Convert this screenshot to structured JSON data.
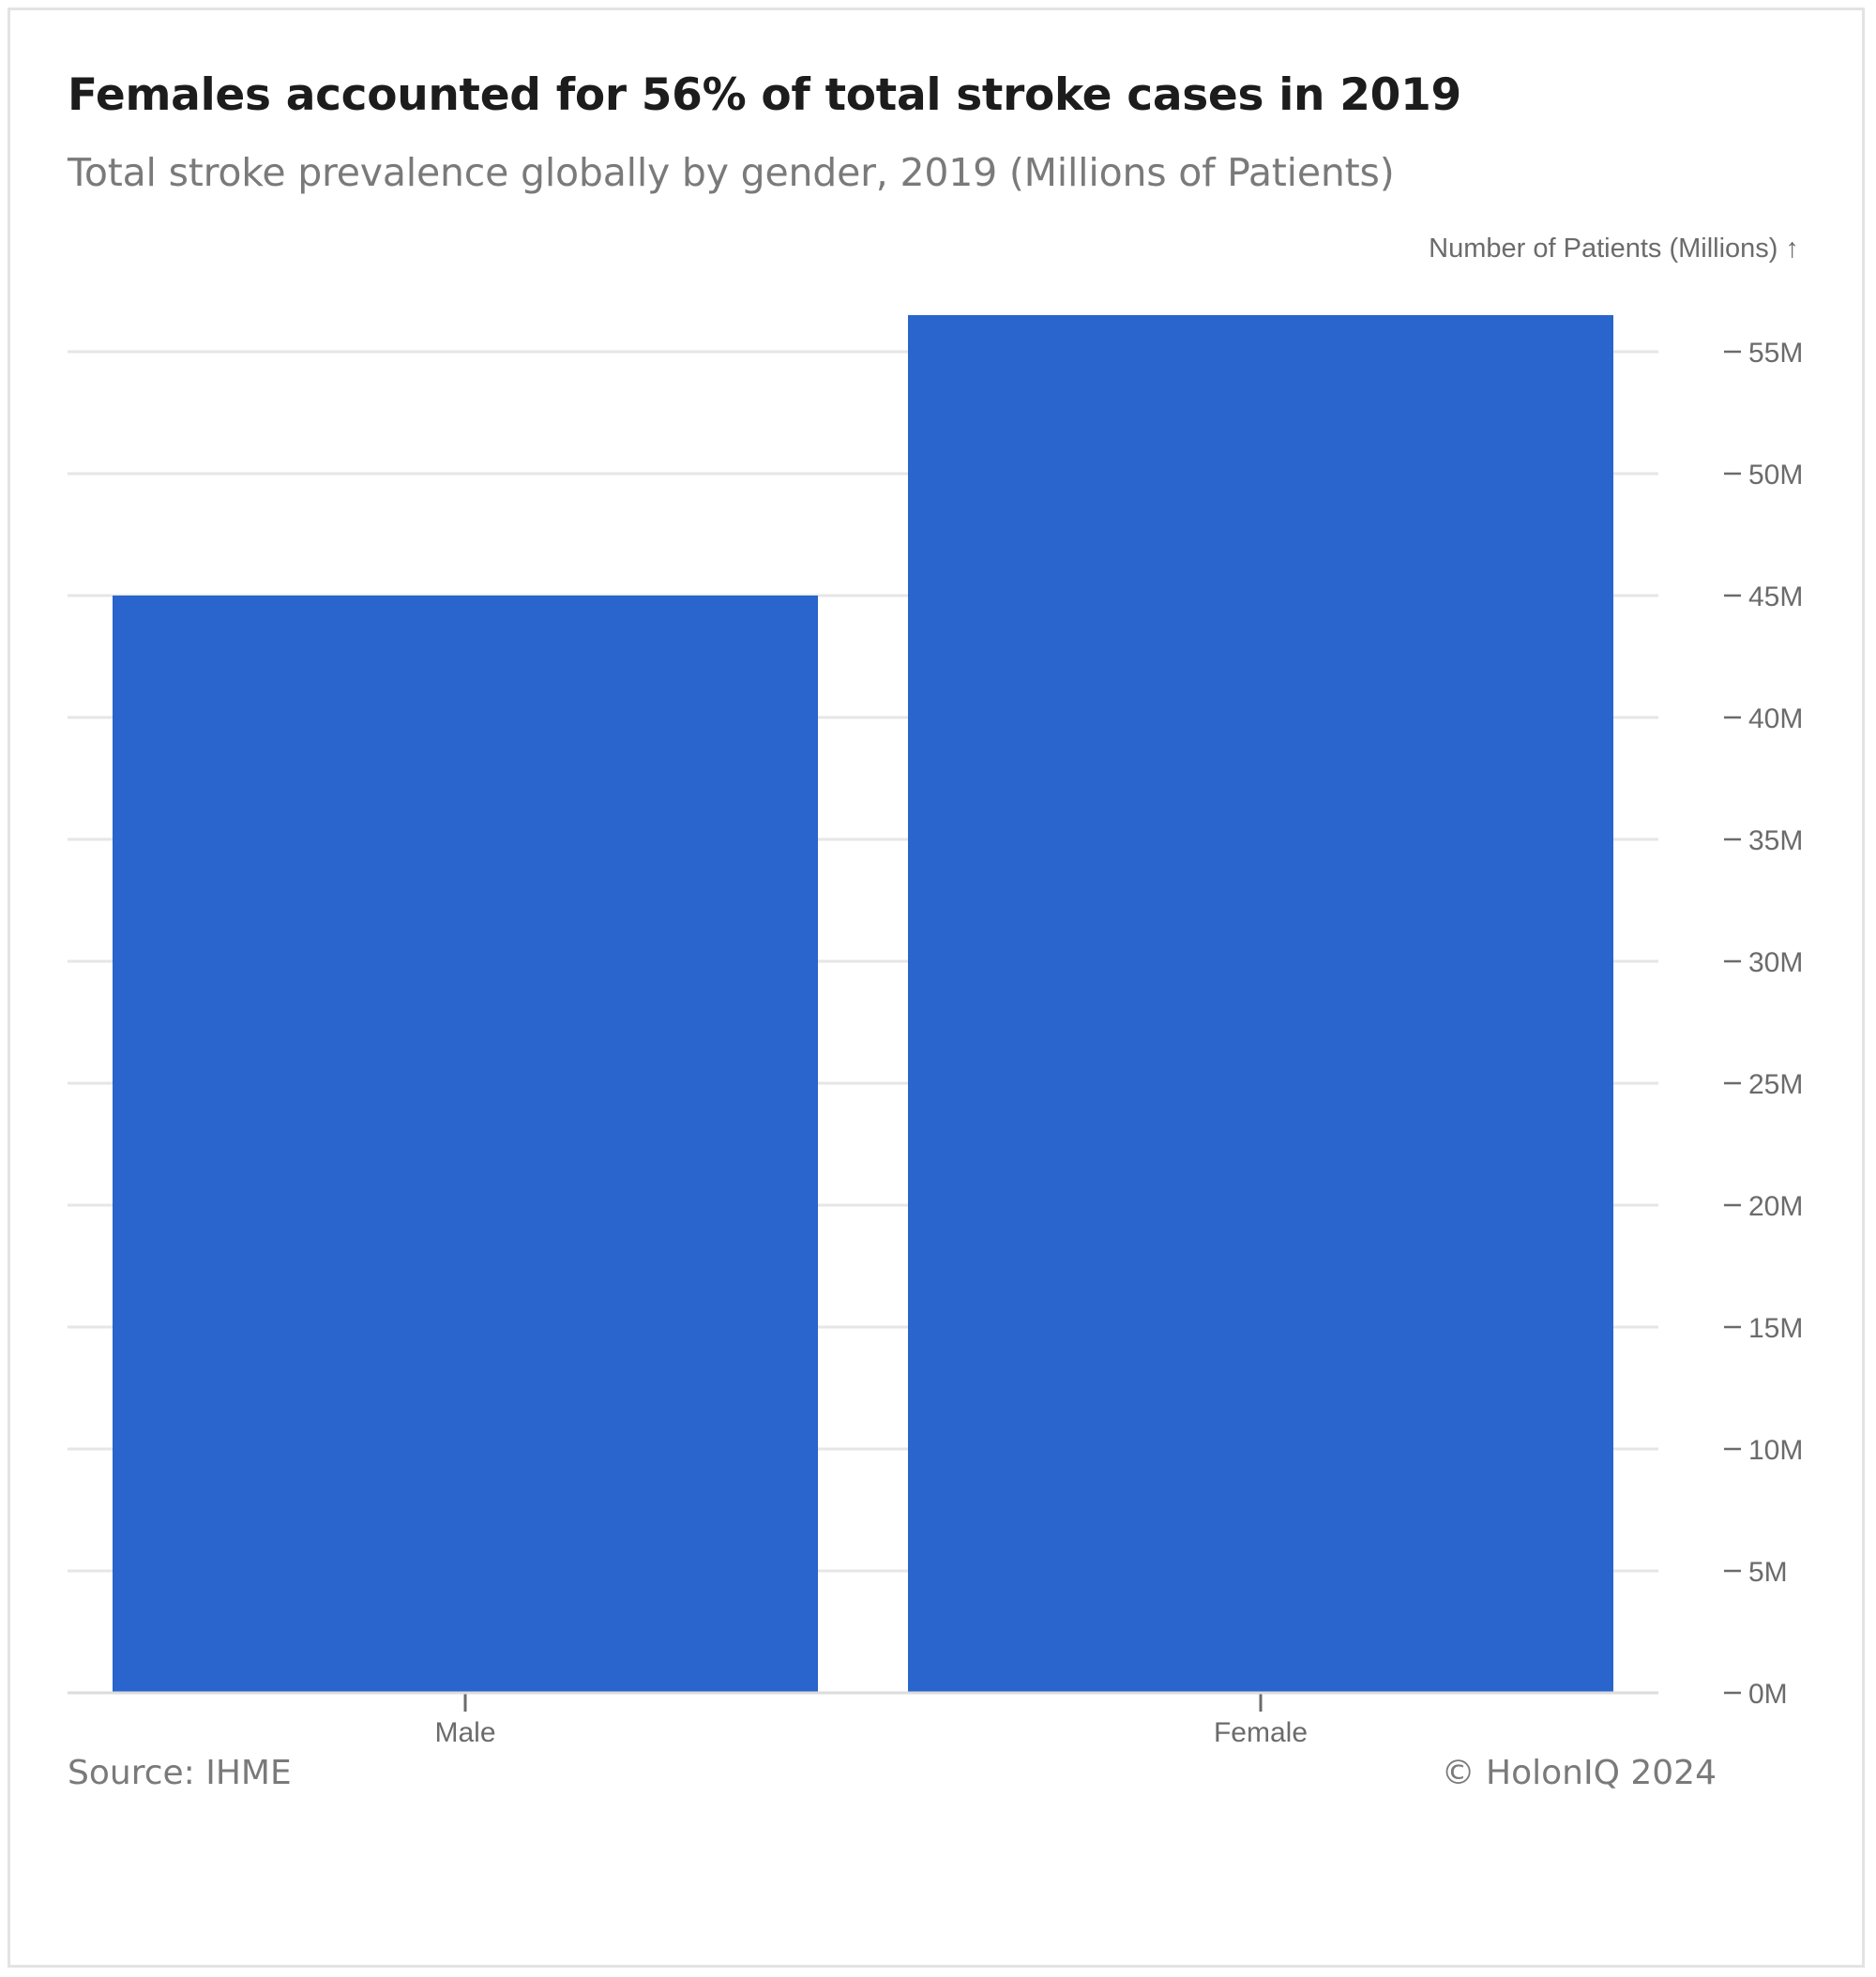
{
  "title": "Females accounted for 56% of total stroke cases in 2019",
  "subtitle": "Total stroke prevalence globally by gender, 2019 (Millions of Patients)",
  "source": "Source: IHME",
  "credit": "© HolonIQ 2024",
  "colors": {
    "bar": "#2965cc",
    "grid": "#e6e6e6",
    "axis_text": "#6b6b6b",
    "tick": "#6b6b6b"
  },
  "chart_data": {
    "type": "bar",
    "categories": [
      "Male",
      "Female"
    ],
    "values": [
      45,
      56.5
    ],
    "title": "Females accounted for 56% of total stroke cases in 2019",
    "subtitle": "Total stroke prevalence globally by gender, 2019 (Millions of Patients)",
    "xlabel": "",
    "ylabel": "Number of Patients (Millions) ↑",
    "ylim": [
      0,
      55
    ],
    "yticks": [
      0,
      5,
      10,
      15,
      20,
      25,
      30,
      35,
      40,
      45,
      50,
      55
    ],
    "ytick_labels": [
      "0M",
      "5M",
      "10M",
      "15M",
      "20M",
      "25M",
      "30M",
      "35M",
      "40M",
      "45M",
      "50M",
      "55M"
    ],
    "grid": true,
    "y_axis_side": "right"
  }
}
